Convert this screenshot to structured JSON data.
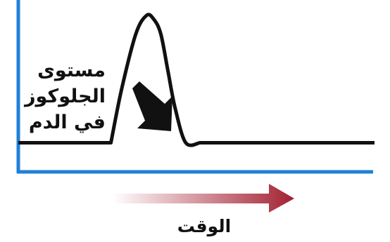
{
  "figure": {
    "y_label_lines": [
      "مستوى",
      "الجلوكوز",
      "في الدم"
    ],
    "x_label": "الوقت"
  },
  "colors": {
    "axis": "#1f7fd8",
    "curve": "#111111",
    "pointer_arrow": "#111111",
    "time_arrow_start": "#ffffff",
    "time_arrow_end": "#a32132"
  },
  "icons": {
    "pointer": "arrow-down-right-icon",
    "time": "arrow-right-gradient-icon"
  },
  "chart_data": {
    "type": "line",
    "series": [
      {
        "x": [
          0,
          0.26,
          0.29,
          0.33,
          0.36,
          0.38,
          0.4,
          0.42,
          0.44,
          0.47,
          0.51,
          1.0
        ],
        "values": [
          0.31,
          0.31,
          0.6,
          0.9,
          1.0,
          0.98,
          0.9,
          0.7,
          0.5,
          0.31,
          0.31,
          0.31
        ]
      }
    ],
    "xlabel": "الوقت",
    "ylabel": "مستوى الجلوكوز في الدم",
    "grid": false
  }
}
